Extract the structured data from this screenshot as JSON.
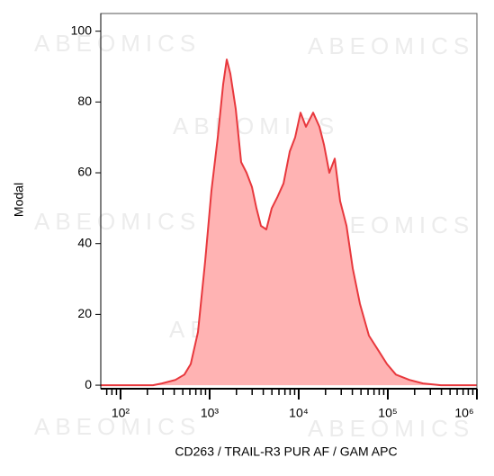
{
  "chart_data": {
    "type": "area",
    "watermark": "ABEOMICS",
    "x_label": "CD263 / TRAIL-R3  PUR AF / GAM APC",
    "y_label": "Modal",
    "x": [
      60,
      231,
      292,
      413,
      521,
      614,
      740,
      891,
      1048,
      1233,
      1419,
      1556,
      1707,
      1963,
      2258,
      2596,
      2985,
      3350,
      3767,
      4334,
      4978,
      5728,
      6745,
      7925,
      9120,
      10470,
      12050,
      14520,
      17060,
      19190,
      22080,
      25350,
      29170,
      34360,
      40360,
      48640,
      61380,
      77450,
      97720,
      123300,
      174600,
      247700,
      394500,
      1000000
    ],
    "values": [
      0,
      0,
      0.5,
      1.5,
      3,
      6,
      15,
      35,
      55,
      70,
      85,
      92,
      88,
      78,
      63,
      60,
      56,
      50,
      45,
      44,
      50,
      53,
      57,
      66,
      70,
      77,
      73,
      77,
      73,
      68,
      60,
      64,
      52,
      45,
      33,
      23,
      14,
      10,
      6,
      3,
      1.5,
      0.5,
      0,
      0
    ],
    "color": "#e8383d",
    "fill_color": "#ffb3b3",
    "log_x": true,
    "xlim": [
      60,
      1000000
    ],
    "ylim": [
      -1,
      105
    ],
    "xticks": [
      {
        "value": 100,
        "label": "10²"
      },
      {
        "value": 1000,
        "label": "10³"
      },
      {
        "value": 10000,
        "label": "10⁴"
      },
      {
        "value": 100000,
        "label": "10⁵"
      },
      {
        "value": 1000000,
        "label": "10⁶"
      }
    ],
    "xminorticks": [
      70,
      80,
      90,
      200,
      300,
      400,
      500,
      600,
      700,
      800,
      900,
      2000,
      3000,
      4000,
      5000,
      6000,
      7000,
      8000,
      9000,
      20000,
      30000,
      40000,
      50000,
      60000,
      70000,
      80000,
      90000,
      200000,
      300000,
      400000,
      500000,
      600000,
      700000,
      800000,
      900000
    ],
    "yticks": [
      0,
      20,
      40,
      60,
      80,
      100
    ]
  }
}
